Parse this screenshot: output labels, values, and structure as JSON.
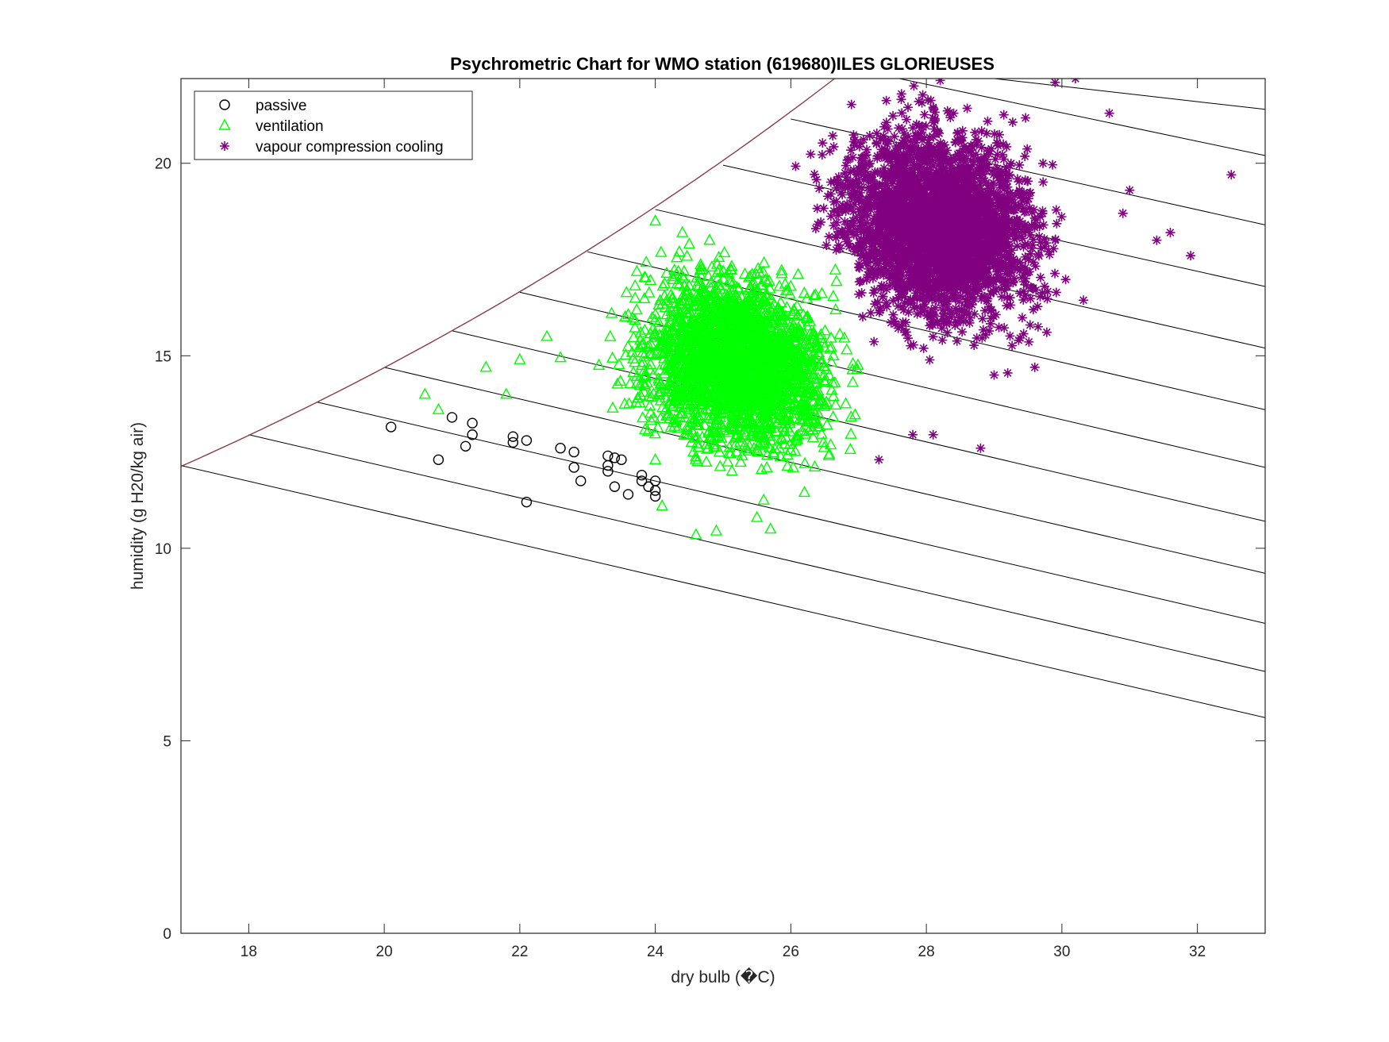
{
  "chart_data": {
    "type": "scatter",
    "title": "Psychrometric Chart for WMO station (619680)ILES GLORIEUSES",
    "xlabel": "dry bulb (�C)",
    "ylabel": "humidity (g H20/kg air)",
    "xlim": [
      17,
      33
    ],
    "ylim": [
      0,
      22.2
    ],
    "xticks": [
      18,
      20,
      22,
      24,
      26,
      28,
      30,
      32
    ],
    "yticks": [
      0,
      5,
      10,
      15,
      20
    ],
    "grid": false,
    "legend_position": "top-left",
    "saturation_curve_color": "#8b3a4a",
    "enthalpy_lines": [
      {
        "x0": 17.0,
        "y0": 12.15,
        "x1": 33.0,
        "y1": 5.6
      },
      {
        "x0": 18.0,
        "y0": 12.95,
        "x1": 33.0,
        "y1": 6.8
      },
      {
        "x0": 19.0,
        "y0": 13.8,
        "x1": 33.0,
        "y1": 8.05
      },
      {
        "x0": 20.0,
        "y0": 14.7,
        "x1": 33.0,
        "y1": 9.35
      },
      {
        "x0": 21.0,
        "y0": 15.65,
        "x1": 33.0,
        "y1": 10.7
      },
      {
        "x0": 22.0,
        "y0": 16.65,
        "x1": 33.0,
        "y1": 12.1
      },
      {
        "x0": 23.0,
        "y0": 17.7,
        "x1": 33.0,
        "y1": 13.6
      },
      {
        "x0": 24.0,
        "y0": 18.8,
        "x1": 33.0,
        "y1": 15.2
      },
      {
        "x0": 25.0,
        "y0": 19.95,
        "x1": 33.0,
        "y1": 16.8
      },
      {
        "x0": 26.0,
        "y0": 21.15,
        "x1": 33.0,
        "y1": 18.4
      },
      {
        "x0": 27.6,
        "y0": 22.2,
        "x1": 33.0,
        "y1": 20.2
      },
      {
        "x0": 29.0,
        "y0": 22.2,
        "x1": 33.0,
        "y1": 21.4
      }
    ],
    "series": [
      {
        "name": "passive",
        "marker": "circle",
        "color": "#000000",
        "points": [
          [
            20.1,
            13.15
          ],
          [
            20.8,
            12.3
          ],
          [
            21.0,
            13.4
          ],
          [
            21.2,
            12.65
          ],
          [
            21.3,
            13.25
          ],
          [
            21.3,
            12.95
          ],
          [
            21.9,
            12.9
          ],
          [
            21.9,
            12.75
          ],
          [
            22.1,
            12.8
          ],
          [
            22.1,
            11.2
          ],
          [
            22.6,
            12.6
          ],
          [
            22.8,
            12.5
          ],
          [
            22.8,
            12.1
          ],
          [
            22.9,
            11.75
          ],
          [
            23.3,
            12.4
          ],
          [
            23.3,
            12.15
          ],
          [
            23.3,
            12.0
          ],
          [
            23.4,
            12.35
          ],
          [
            23.4,
            11.6
          ],
          [
            23.5,
            12.3
          ],
          [
            23.6,
            11.4
          ],
          [
            23.8,
            11.9
          ],
          [
            23.8,
            11.75
          ],
          [
            23.9,
            11.6
          ],
          [
            24.0,
            11.75
          ],
          [
            24.0,
            11.5
          ],
          [
            24.0,
            11.35
          ]
        ]
      },
      {
        "name": "ventilation",
        "marker": "triangle",
        "color": "#00ff00",
        "x_range": [
          20.6,
          27.0
        ],
        "center": [
          25.2,
          14.9
        ],
        "cloud_size": 2600,
        "outliers": [
          [
            20.6,
            14.0
          ],
          [
            20.8,
            13.6
          ],
          [
            21.5,
            14.7
          ],
          [
            21.8,
            14.0
          ],
          [
            22.0,
            14.9
          ],
          [
            22.4,
            15.5
          ],
          [
            22.6,
            14.95
          ],
          [
            24.0,
            18.5
          ],
          [
            24.4,
            18.2
          ],
          [
            24.6,
            10.35
          ],
          [
            24.9,
            10.45
          ],
          [
            25.5,
            10.8
          ],
          [
            25.7,
            10.5
          ],
          [
            25.6,
            11.25
          ],
          [
            24.5,
            17.9
          ],
          [
            24.8,
            18.0
          ],
          [
            24.0,
            12.3
          ],
          [
            24.1,
            11.1
          ]
        ]
      },
      {
        "name": "vapour compression cooling",
        "marker": "asterisk",
        "color": "#800080",
        "x_range": [
          24.0,
          32.5
        ],
        "center": [
          28.2,
          18.4
        ],
        "cloud_size": 3200,
        "outliers": [
          [
            32.5,
            19.7
          ],
          [
            31.9,
            17.6
          ],
          [
            31.6,
            18.2
          ],
          [
            31.4,
            18.0
          ],
          [
            30.7,
            21.3
          ],
          [
            30.2,
            22.2
          ],
          [
            29.9,
            22.1
          ],
          [
            28.8,
            12.6
          ],
          [
            28.1,
            12.95
          ],
          [
            27.8,
            12.95
          ],
          [
            27.3,
            12.3
          ],
          [
            29.0,
            14.5
          ],
          [
            29.6,
            14.7
          ],
          [
            31.0,
            19.3
          ],
          [
            30.9,
            18.7
          ]
        ]
      }
    ]
  }
}
